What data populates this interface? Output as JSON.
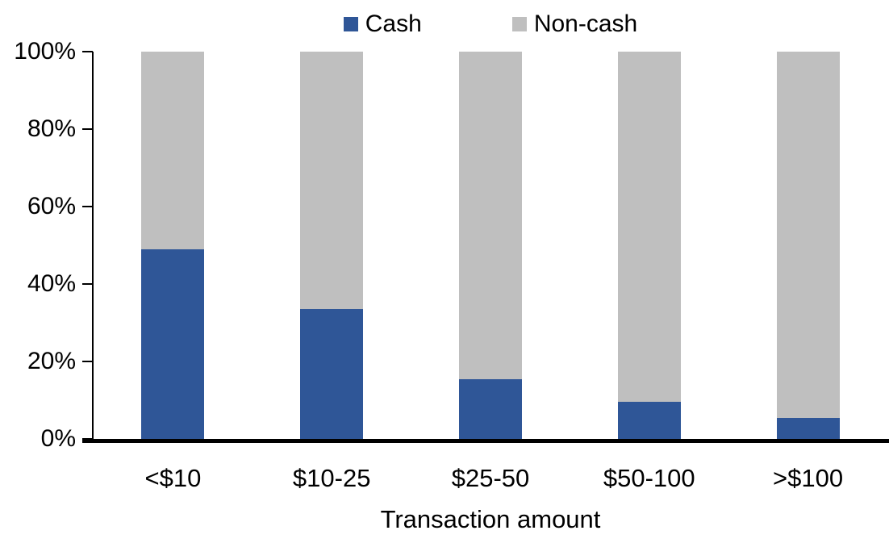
{
  "chart_data": {
    "type": "bar",
    "stacked": true,
    "percent_stacked": true,
    "title": "",
    "xlabel": "Transaction amount",
    "ylabel": "",
    "categories": [
      "<$10",
      "$10-25",
      "$25-50",
      "$50-100",
      ">$100"
    ],
    "series": [
      {
        "name": "Cash",
        "color": "#2F5697",
        "values": [
          49,
          33.5,
          15.5,
          9.5,
          5.5
        ]
      },
      {
        "name": "Non-cash",
        "color": "#BFBFBF",
        "values": [
          51,
          66.5,
          84.5,
          90.5,
          94.5
        ]
      }
    ],
    "ylim": [
      0,
      100
    ],
    "yticks": [
      "0%",
      "20%",
      "40%",
      "60%",
      "80%",
      "100%"
    ],
    "legend_position": "top",
    "grid": false,
    "axis_color": "#000000",
    "background_color": "#FFFFFF"
  }
}
